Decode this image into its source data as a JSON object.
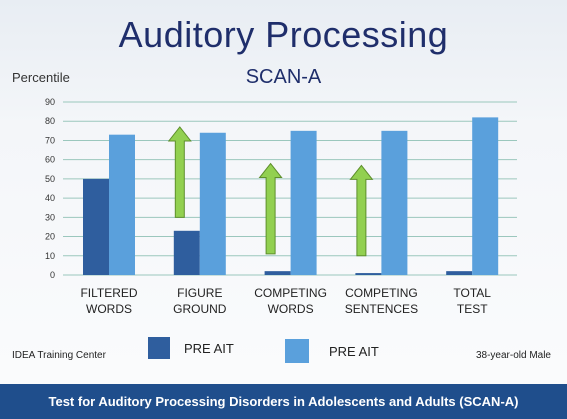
{
  "title": "Auditory Processing",
  "subtitle": "SCAN-A",
  "footer": {
    "left": "IDEA Training Center",
    "right": "38-year-old Male",
    "banner": "Test for Auditory Processing Disorders in Adolescents and Adults (SCAN-A)"
  },
  "colors": {
    "series1": "#2f5e9e",
    "series2": "#5aa0dc",
    "arrow_fill": "#92d050",
    "arrow_stroke": "#5e8f2c",
    "grid": "#9bc7bd"
  },
  "chart_data": {
    "type": "bar",
    "title": "SCAN-A",
    "ylabel": "Percentile",
    "ylim": [
      0,
      90
    ],
    "yticks": [
      0,
      10,
      20,
      30,
      40,
      50,
      60,
      70,
      80,
      90
    ],
    "grid": true,
    "categories": [
      [
        "FILTERED",
        "WORDS"
      ],
      [
        "FIGURE",
        "GROUND"
      ],
      [
        "COMPETING",
        "WORDS"
      ],
      [
        "COMPETING",
        "SENTENCES"
      ],
      [
        "TOTAL",
        "TEST"
      ]
    ],
    "series": [
      {
        "name": "PRE AIT",
        "values": [
          50,
          23,
          2,
          1,
          2
        ]
      },
      {
        "name": "PRE AIT",
        "values": [
          73,
          74,
          75,
          75,
          82
        ]
      }
    ],
    "arrows": [
      {
        "category_index": 1,
        "from": 30,
        "to": 77
      },
      {
        "category_index": 2,
        "from": 11,
        "to": 58
      },
      {
        "category_index": 3,
        "from": 10,
        "to": 57
      }
    ],
    "legend_position": "bottom"
  }
}
